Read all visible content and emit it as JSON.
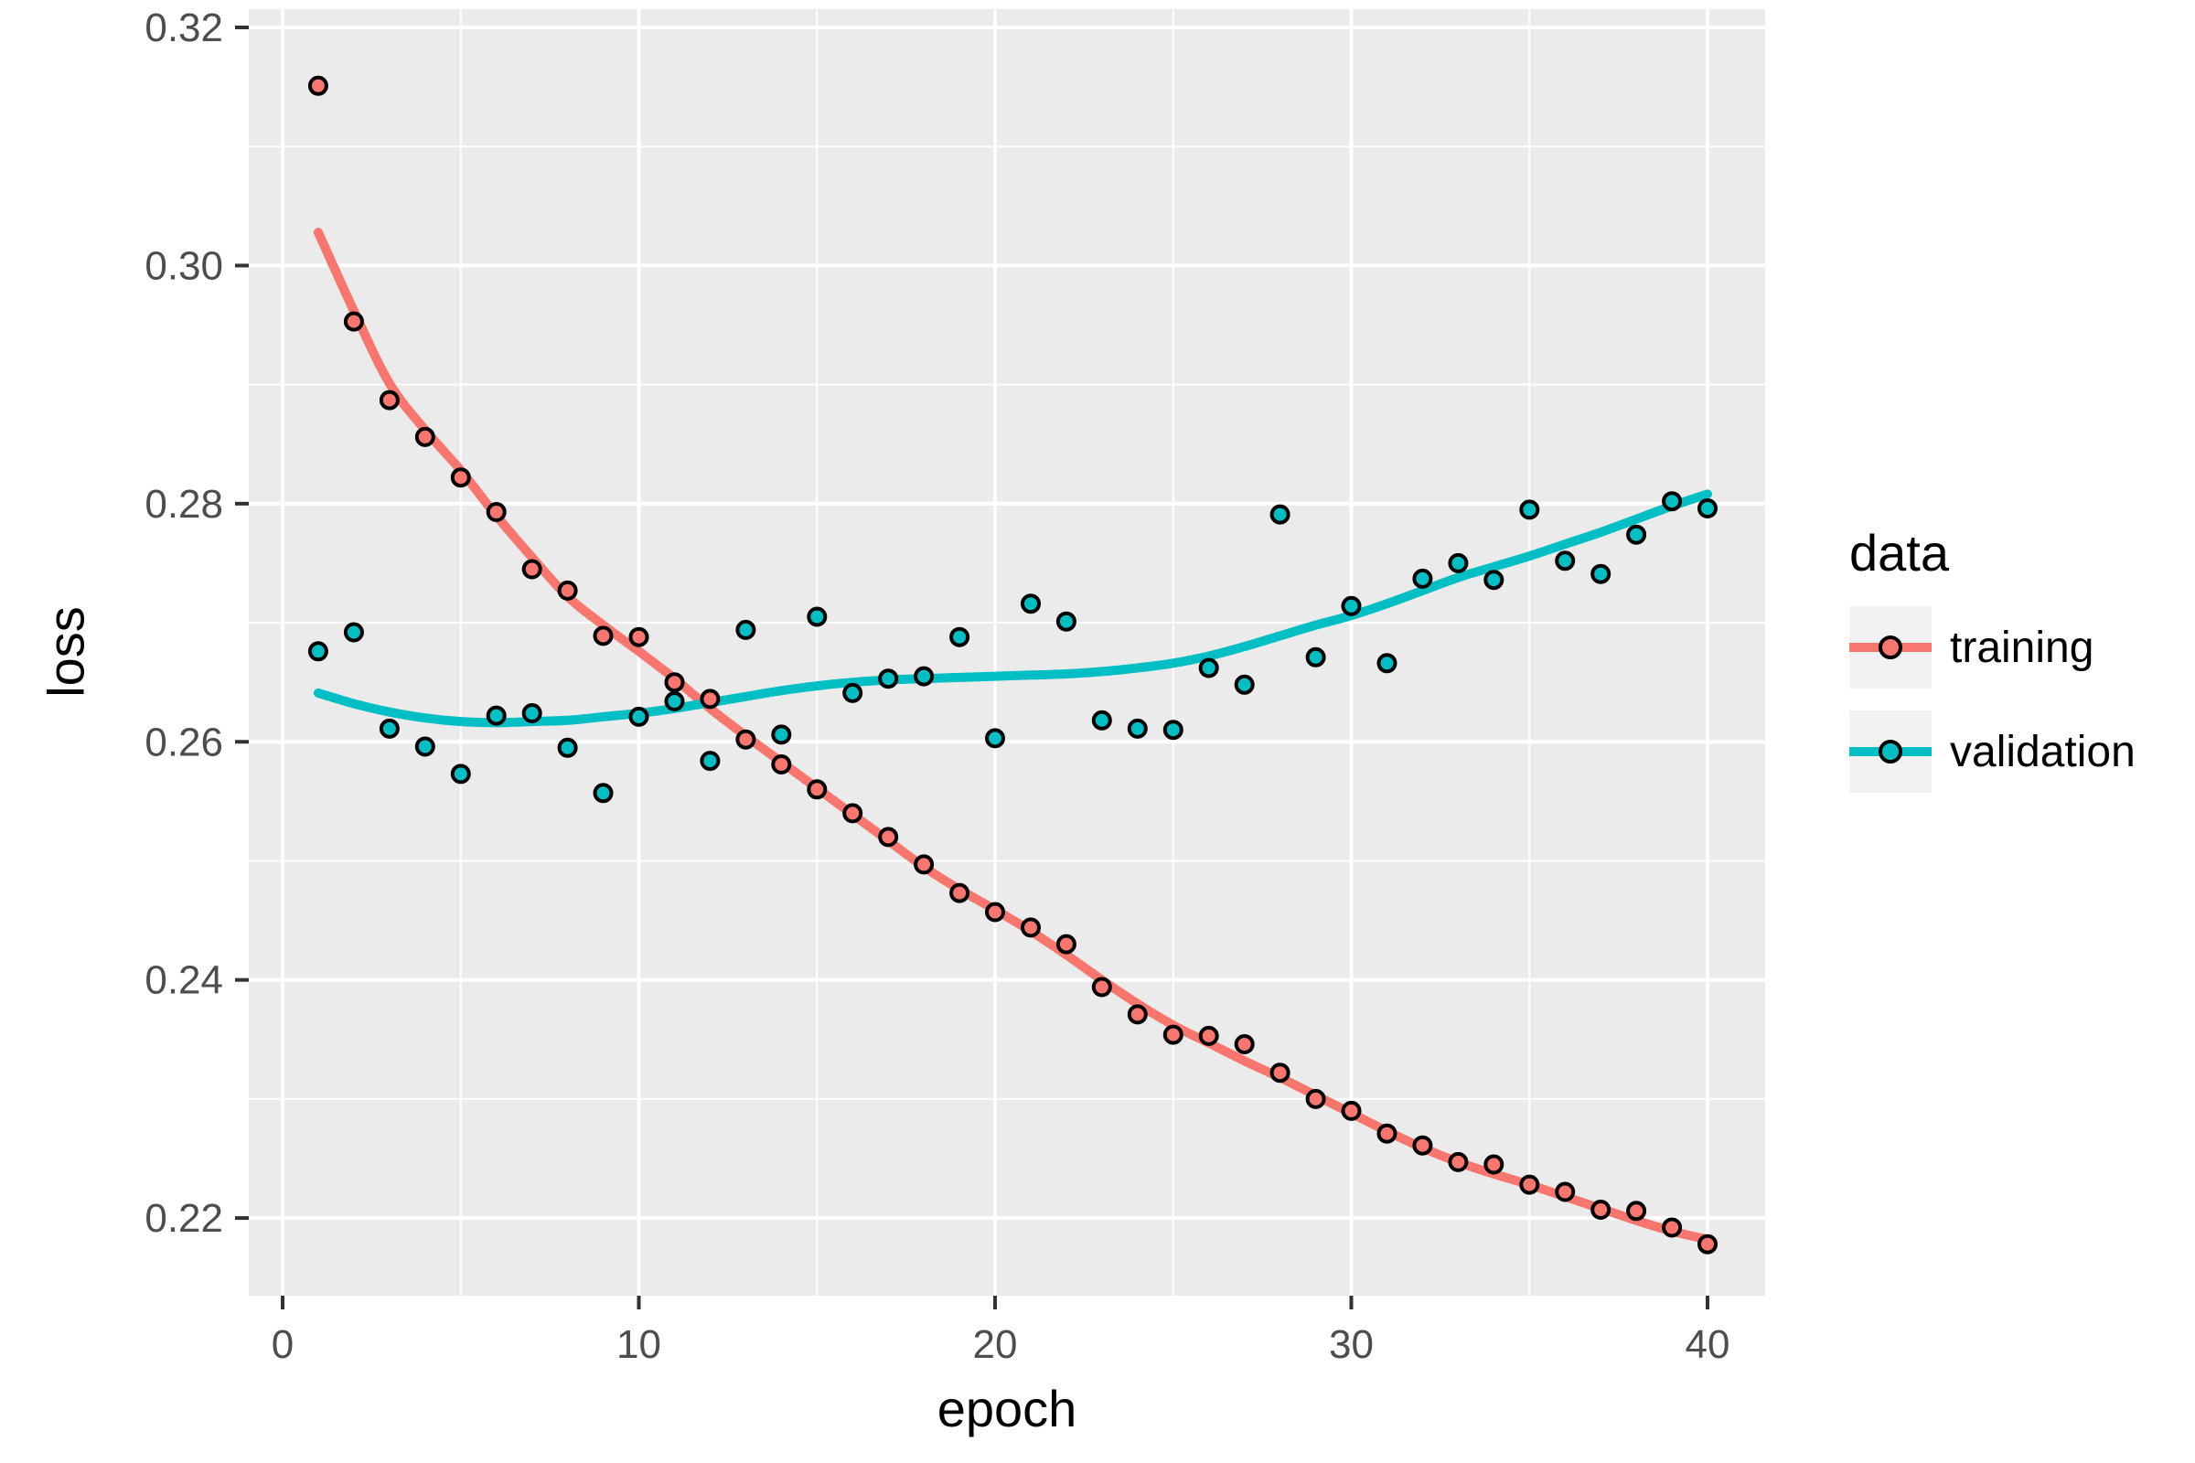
{
  "figure": {
    "background": "#FFFFFF",
    "panel_background": "#EBEBEB",
    "grid_color": "#FFFFFF",
    "tick_mark_color": "#333333",
    "tick_label_color": "#4D4D4D",
    "axis_title_color": "#000000"
  },
  "axes": {
    "x": {
      "title": "epoch",
      "major_ticks": [
        0,
        10,
        20,
        30,
        40
      ],
      "tick_labels": [
        "0",
        "10",
        "20",
        "30",
        "40"
      ],
      "minor_ticks": [
        5,
        15,
        25,
        35
      ]
    },
    "y": {
      "title": "loss",
      "major_ticks": [
        0.22,
        0.24,
        0.26,
        0.28,
        0.3,
        0.32
      ],
      "tick_labels": [
        "0.22",
        "0.24",
        "0.26",
        "0.28",
        "0.30",
        "0.32"
      ],
      "minor_ticks": [
        0.23,
        0.25,
        0.27,
        0.29,
        0.31
      ]
    }
  },
  "legend": {
    "title": "data",
    "key_background": "#F2F2F2",
    "items": [
      {
        "label": "training",
        "color": "#F8766D"
      },
      {
        "label": "validation",
        "color": "#00BFC4"
      }
    ]
  },
  "chart_data": {
    "type": "scatter",
    "title": "",
    "xlabel": "epoch",
    "ylabel": "loss",
    "xlim": [
      -0.95,
      41.6
    ],
    "ylim": [
      0.2135,
      0.3215
    ],
    "grid": true,
    "legend_position": "right",
    "legend_title": "data",
    "x": [
      1,
      2,
      3,
      4,
      5,
      6,
      7,
      8,
      9,
      10,
      11,
      12,
      13,
      14,
      15,
      16,
      17,
      18,
      19,
      20,
      21,
      22,
      23,
      24,
      25,
      26,
      27,
      28,
      29,
      30,
      31,
      32,
      33,
      34,
      35,
      36,
      37,
      38,
      39,
      40
    ],
    "series": [
      {
        "name": "training",
        "color": "#F8766D",
        "marker": "circle-black-outline",
        "values": [
          0.3151,
          0.2953,
          0.2887,
          0.2856,
          0.2822,
          0.2793,
          0.2745,
          0.2727,
          0.2689,
          0.2688,
          0.265,
          0.2636,
          0.2602,
          0.2581,
          0.256,
          0.254,
          0.252,
          0.2497,
          0.2473,
          0.2457,
          0.2444,
          0.243,
          0.2394,
          0.2371,
          0.2354,
          0.2353,
          0.2346,
          0.2322,
          0.23,
          0.229,
          0.2271,
          0.2261,
          0.2247,
          0.2245,
          0.2228,
          0.2222,
          0.2207,
          0.2206,
          0.2192,
          0.2178
        ],
        "smooth": [
          0.3028,
          0.2962,
          0.2901,
          0.2862,
          0.2828,
          0.279,
          0.2755,
          0.2722,
          0.2698,
          0.2676,
          0.2653,
          0.2628,
          0.2605,
          0.2583,
          0.2561,
          0.2539,
          0.2517,
          0.2495,
          0.2476,
          0.2459,
          0.2441,
          0.2421,
          0.24,
          0.238,
          0.2362,
          0.2347,
          0.2332,
          0.2318,
          0.2303,
          0.2288,
          0.2273,
          0.2259,
          0.2247,
          0.2237,
          0.2228,
          0.2218,
          0.2208,
          0.2198,
          0.2189,
          0.2182
        ]
      },
      {
        "name": "validation",
        "color": "#00BFC4",
        "marker": "circle-black-outline",
        "values": [
          0.2676,
          0.2692,
          0.2611,
          0.2596,
          0.2573,
          0.2622,
          0.2624,
          0.2595,
          0.2557,
          0.2621,
          0.2634,
          0.2584,
          0.2694,
          0.2606,
          0.2705,
          0.2641,
          0.2653,
          0.2655,
          0.2688,
          0.2603,
          0.2716,
          0.2701,
          0.2618,
          0.2611,
          0.261,
          0.2662,
          0.2648,
          0.2791,
          0.2671,
          0.2714,
          0.2666,
          0.2737,
          0.275,
          0.2736,
          0.2795,
          0.2752,
          0.2741,
          0.2774,
          0.2802,
          0.2796
        ],
        "smooth": [
          0.2641,
          0.2632,
          0.2625,
          0.262,
          0.2617,
          0.2616,
          0.2617,
          0.2618,
          0.2621,
          0.2624,
          0.2628,
          0.2633,
          0.2638,
          0.2643,
          0.2647,
          0.265,
          0.2652,
          0.2653,
          0.2654,
          0.2655,
          0.2656,
          0.2657,
          0.2659,
          0.2662,
          0.2666,
          0.2672,
          0.268,
          0.2689,
          0.2698,
          0.2706,
          0.2716,
          0.2727,
          0.2738,
          0.2747,
          0.2756,
          0.2766,
          0.2776,
          0.2787,
          0.2798,
          0.2808
        ]
      }
    ]
  }
}
